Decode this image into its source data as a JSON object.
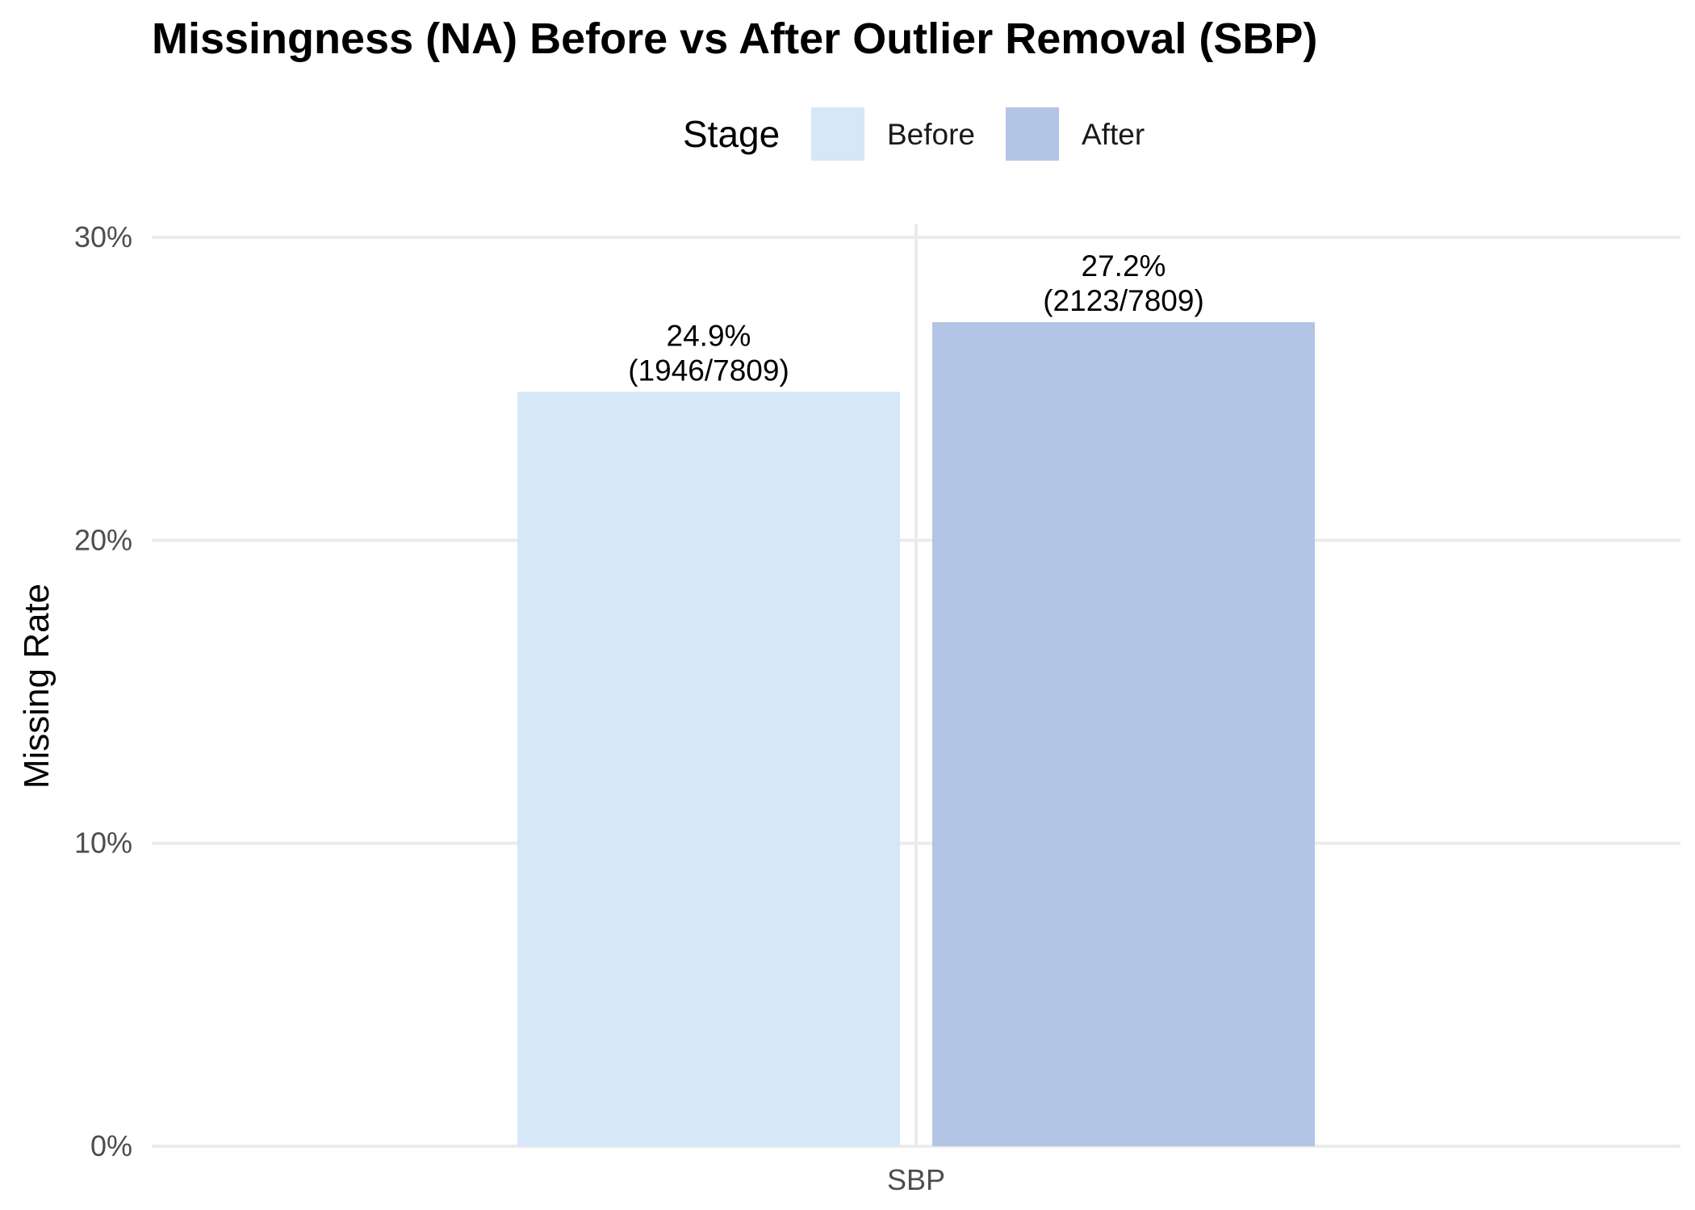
{
  "chart_data": {
    "type": "bar",
    "title": "Missingness (NA) Before vs After Outlier Removal (SBP)",
    "xlabel": "",
    "ylabel": "Missing Rate",
    "categories": [
      "SBP"
    ],
    "ylim": [
      0,
      0.3
    ],
    "yticks": [
      0,
      0.1,
      0.2,
      0.3
    ],
    "ytick_labels": [
      "0%",
      "10%",
      "20%",
      "30%"
    ],
    "grid": true,
    "legend": {
      "title": "Stage",
      "position": "top"
    },
    "series": [
      {
        "name": "Before",
        "color": "#d6e7f7",
        "values": [
          0.249
        ],
        "label_line1": "24.9%",
        "label_line2": "(1946/7809)"
      },
      {
        "name": "After",
        "color": "#b3c5e6",
        "values": [
          0.272
        ],
        "label_line1": "27.2%",
        "label_line2": "(2123/7809)"
      }
    ]
  }
}
